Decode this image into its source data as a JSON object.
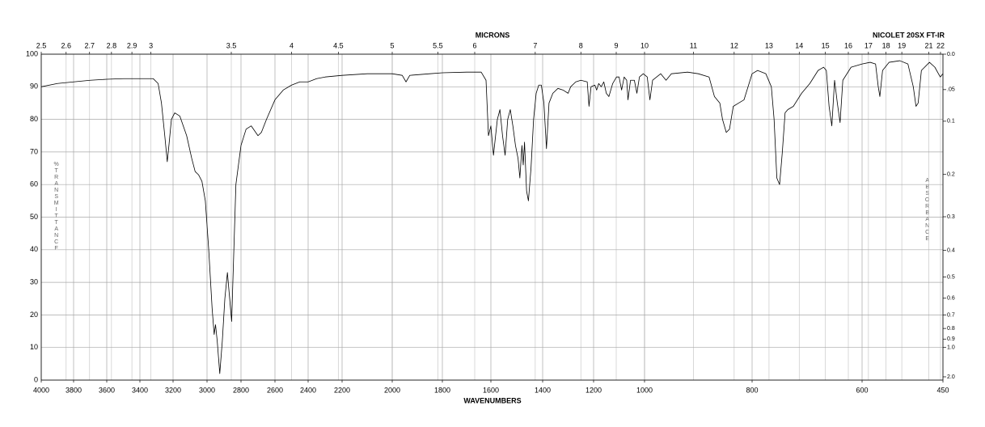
{
  "chart_data": {
    "type": "line",
    "annotation": "NICOLET 20SX FT-IR",
    "xlabel": "WAVENUMBERS",
    "top_label": "MICRONS",
    "ylabel": "%TRANSMITTANCE",
    "y2label": "ABSORBANCE",
    "color": "#000000",
    "grid": true,
    "xlim": [
      4000,
      450
    ],
    "xticks": [
      4000,
      3800,
      3600,
      3400,
      3200,
      3000,
      2800,
      2600,
      2400,
      2200,
      2000,
      1800,
      1600,
      1400,
      1200,
      1000,
      800,
      600,
      450
    ],
    "top_ticks": [
      2.5,
      2.6,
      2.7,
      2.8,
      2.9,
      3,
      3.5,
      4,
      4.5,
      5,
      5.5,
      6,
      7,
      8,
      9,
      10,
      11,
      12,
      13,
      14,
      15,
      16,
      17,
      18,
      19,
      21,
      22
    ],
    "ylim": [
      0,
      100
    ],
    "yticks": [
      0,
      10,
      20,
      30,
      40,
      50,
      60,
      70,
      80,
      90,
      100
    ],
    "y2ticks": [
      {
        "value": 0,
        "label": "0.0"
      },
      {
        "value": 0.05,
        "label": ".05"
      },
      0.1,
      0.2,
      0.3,
      0.4,
      0.5,
      0.6,
      0.7,
      0.8,
      0.9,
      {
        "value": 1,
        "label": "1.0"
      },
      {
        "value": 2,
        "label": "2.0"
      }
    ],
    "x": [
      4000,
      3900,
      3800,
      3700,
      3600,
      3500,
      3400,
      3320,
      3290,
      3270,
      3250,
      3235,
      3225,
      3210,
      3190,
      3160,
      3120,
      3090,
      3070,
      3050,
      3030,
      3010,
      2990,
      2970,
      2958,
      2950,
      2940,
      2925,
      2910,
      2895,
      2880,
      2870,
      2855,
      2845,
      2830,
      2800,
      2770,
      2740,
      2700,
      2680,
      2650,
      2600,
      2550,
      2500,
      2450,
      2400,
      2350,
      2300,
      2200,
      2100,
      2000,
      1960,
      1945,
      1930,
      1850,
      1800,
      1700,
      1640,
      1620,
      1610,
      1600,
      1590,
      1575,
      1565,
      1555,
      1545,
      1535,
      1525,
      1515,
      1505,
      1495,
      1488,
      1480,
      1475,
      1470,
      1462,
      1455,
      1445,
      1435,
      1425,
      1415,
      1405,
      1395,
      1385,
      1375,
      1360,
      1340,
      1320,
      1300,
      1290,
      1270,
      1250,
      1225,
      1218,
      1210,
      1195,
      1188,
      1180,
      1170,
      1160,
      1150,
      1140,
      1125,
      1110,
      1100,
      1090,
      1080,
      1070,
      1065,
      1055,
      1040,
      1030,
      1020,
      1005,
      995,
      990,
      985,
      970,
      960,
      950,
      920,
      900,
      880,
      875,
      870,
      860,
      855,
      848,
      842,
      835,
      825,
      815,
      800,
      790,
      775,
      765,
      760,
      755,
      750,
      745,
      740,
      735,
      725,
      710,
      695,
      680,
      670,
      665,
      660,
      655,
      650,
      645,
      640,
      635,
      620,
      600,
      585,
      575,
      570,
      567,
      562,
      550,
      530,
      515,
      505,
      500,
      496,
      490,
      475,
      465,
      455,
      450
    ],
    "values": [
      90,
      91,
      91.5,
      92,
      92.3,
      92.5,
      92.5,
      92.5,
      91,
      85,
      75,
      67,
      72,
      80,
      82,
      81,
      75,
      68,
      64,
      63,
      61,
      55,
      40,
      22,
      14,
      17,
      12,
      2,
      12,
      25,
      33,
      27,
      18,
      35,
      60,
      72,
      77,
      78,
      75,
      76,
      80,
      86,
      89,
      90.5,
      91.5,
      91.5,
      92.5,
      93,
      93.5,
      94,
      94,
      93.5,
      91.5,
      93.5,
      94,
      94.3,
      94.5,
      94.5,
      92,
      75,
      78,
      69,
      80,
      83,
      75,
      69,
      80,
      83,
      78,
      72,
      68,
      62,
      72,
      66,
      73,
      58,
      55,
      65,
      80,
      88,
      90.5,
      90.5,
      85,
      71,
      85,
      88,
      89.5,
      89,
      88,
      90,
      91.5,
      92,
      91.5,
      84,
      90,
      90.5,
      89,
      91,
      90,
      91.5,
      88,
      87,
      91,
      93,
      93,
      89,
      93,
      92,
      86,
      92,
      92,
      88,
      93,
      94,
      93,
      86,
      92,
      94,
      92,
      94,
      94.5,
      94,
      93,
      90,
      87,
      85,
      80,
      76,
      77,
      84,
      85,
      86,
      94,
      95,
      94,
      90,
      80,
      62,
      60,
      70,
      82,
      83,
      84,
      88,
      91,
      95,
      96,
      95,
      84,
      78,
      92,
      85,
      79,
      92,
      96,
      97,
      97.5,
      97,
      90,
      87,
      95,
      97.5,
      98,
      97,
      90,
      84,
      85,
      95,
      97.5,
      96,
      93,
      94
    ]
  }
}
